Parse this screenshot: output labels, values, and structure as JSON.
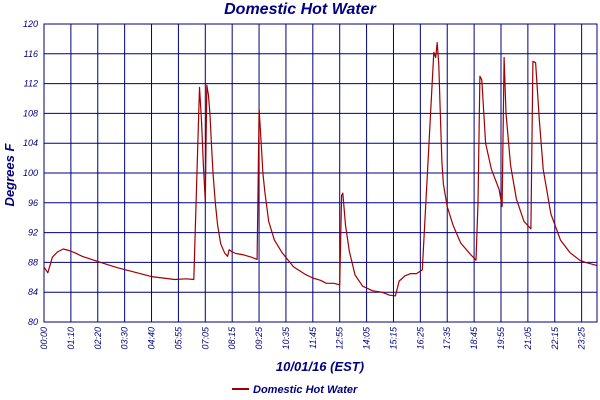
{
  "chart_data": {
    "type": "line",
    "title": "Domestic Hot Water",
    "xlabel": "10/01/16 (EST)",
    "ylabel": "Degrees F",
    "ylim": [
      80,
      120
    ],
    "y_ticks": [
      80,
      84,
      88,
      92,
      96,
      100,
      104,
      108,
      112,
      116,
      120
    ],
    "x_tick_labels": [
      "00:00",
      "01:10",
      "02:20",
      "03:30",
      "04:40",
      "05:55",
      "07:05",
      "08:15",
      "09:25",
      "10:35",
      "11:45",
      "12:55",
      "14:05",
      "15:15",
      "16:25",
      "17:35",
      "18:45",
      "19:55",
      "21:05",
      "22:15",
      "23:25"
    ],
    "grid": true,
    "legend_position": "bottom-center",
    "colors": {
      "series": "#a00000",
      "grid": "#000080",
      "text": "#000080"
    },
    "series": [
      {
        "name": "Domestic Hot Water",
        "x_unit": "minutes since 00:00",
        "x": [
          0,
          10,
          22,
          35,
          50,
          65,
          80,
          100,
          130,
          160,
          190,
          220,
          250,
          280,
          310,
          340,
          370,
          390,
          405,
          410,
          415,
          420,
          424,
          428,
          432,
          436,
          440,
          446,
          452,
          460,
          470,
          478,
          482,
          490,
          500,
          520,
          540,
          555,
          560,
          566,
          570,
          575,
          585,
          600,
          620,
          650,
          680,
          700,
          720,
          735,
          755,
          770,
          775,
          778,
          785,
          795,
          810,
          830,
          855,
          880,
          900,
          915,
          925,
          940,
          955,
          970,
          985,
          1015,
          1020,
          1024,
          1028,
          1032,
          1036,
          1040,
          1050,
          1065,
          1085,
          1110,
          1125,
          1130,
          1135,
          1140,
          1150,
          1165,
          1185,
          1193,
          1198,
          1203,
          1215,
          1230,
          1250,
          1268,
          1273,
          1280,
          1290,
          1300,
          1320,
          1345,
          1370,
          1395,
          1410,
          1425,
          1439
        ],
        "values": [
          87.4,
          86.6,
          88.7,
          89.4,
          89.8,
          89.6,
          89.3,
          88.8,
          88.3,
          87.8,
          87.3,
          86.9,
          86.5,
          86.1,
          85.9,
          85.7,
          85.8,
          85.7,
          111.5,
          107.0,
          101.0,
          96.2,
          111.8,
          110.5,
          108.0,
          104.0,
          100.0,
          96.0,
          93.0,
          90.5,
          89.3,
          88.8,
          89.7,
          89.4,
          89.2,
          89.0,
          88.7,
          88.4,
          108.6,
          103.5,
          100.0,
          97.5,
          93.5,
          91.0,
          89.3,
          87.4,
          86.4,
          85.9,
          85.6,
          85.2,
          85.2,
          85.0,
          97.0,
          97.3,
          93.0,
          89.5,
          86.3,
          84.8,
          84.2,
          84.0,
          83.6,
          83.5,
          85.5,
          86.2,
          86.5,
          86.5,
          87.0,
          116.2,
          115.5,
          117.5,
          114.5,
          108.0,
          101.5,
          98.5,
          95.5,
          93.0,
          90.6,
          89.1,
          88.3,
          96.0,
          113.0,
          112.5,
          104.0,
          100.5,
          97.8,
          95.5,
          115.5,
          108.0,
          101.0,
          96.5,
          93.5,
          92.5,
          115.0,
          114.8,
          107.0,
          100.5,
          94.5,
          91.0,
          89.3,
          88.3,
          88.0,
          87.8,
          87.6
        ]
      }
    ],
    "legend": [
      {
        "label": "Domestic Hot Water",
        "color": "#a00000"
      }
    ]
  }
}
